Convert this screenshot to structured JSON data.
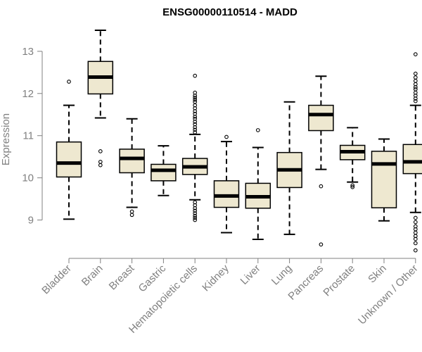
{
  "chart_data": {
    "type": "box",
    "title": "ENSG00000110514 - MADD",
    "ylabel": "Expression",
    "xlabel": "",
    "ylim": [
      8.2,
      13.6
    ],
    "yticks": [
      9,
      10,
      11,
      12,
      13
    ],
    "grid": false,
    "colors": {
      "box_fill": "#EEE8D0",
      "stroke": "#000000",
      "axis": "#808080"
    },
    "categories": [
      "Bladder",
      "Brain",
      "Breast",
      "Gastric",
      "Hematopoietic cells",
      "Kidney",
      "Liver",
      "Lung",
      "Pancreas",
      "Prostate",
      "Skin",
      "Unknown / Other"
    ],
    "boxes": [
      {
        "name": "Bladder",
        "whisker_low": 9.02,
        "q1": 10.02,
        "median": 10.35,
        "q3": 10.85,
        "whisker_high": 11.72,
        "outliers": [
          12.28
        ]
      },
      {
        "name": "Brain",
        "whisker_low": 11.42,
        "q1": 11.99,
        "median": 12.39,
        "q3": 12.76,
        "whisker_high": 13.5,
        "outliers": [
          10.63,
          10.38,
          10.3
        ]
      },
      {
        "name": "Breast",
        "whisker_low": 9.3,
        "q1": 10.12,
        "median": 10.46,
        "q3": 10.68,
        "whisker_high": 11.4,
        "outliers": [
          9.2,
          9.12
        ]
      },
      {
        "name": "Gastric",
        "whisker_low": 9.58,
        "q1": 9.93,
        "median": 10.18,
        "q3": 10.32,
        "whisker_high": 10.76,
        "outliers": []
      },
      {
        "name": "Hematopoietic cells",
        "whisker_low": 9.48,
        "q1": 10.08,
        "median": 10.26,
        "q3": 10.46,
        "whisker_high": 11.03,
        "outliers": [
          12.42,
          12.02,
          11.95,
          11.9,
          11.85,
          11.8,
          11.72,
          11.65,
          11.58,
          11.52,
          11.45,
          11.4,
          11.33,
          11.27,
          11.2,
          11.14,
          11.08,
          9.42,
          9.35,
          9.28,
          9.22,
          9.16,
          9.1,
          9.05,
          9.0
        ]
      },
      {
        "name": "Kidney",
        "whisker_low": 8.7,
        "q1": 9.3,
        "median": 9.57,
        "q3": 9.93,
        "whisker_high": 10.86,
        "outliers": [
          10.97
        ]
      },
      {
        "name": "Liver",
        "whisker_low": 8.54,
        "q1": 9.28,
        "median": 9.55,
        "q3": 9.87,
        "whisker_high": 10.72,
        "outliers": [
          11.13
        ]
      },
      {
        "name": "Lung",
        "whisker_low": 8.66,
        "q1": 9.77,
        "median": 10.19,
        "q3": 10.6,
        "whisker_high": 11.8,
        "outliers": []
      },
      {
        "name": "Pancreas",
        "whisker_low": 10.2,
        "q1": 11.12,
        "median": 11.5,
        "q3": 11.72,
        "whisker_high": 12.41,
        "outliers": [
          9.8,
          8.42
        ]
      },
      {
        "name": "Prostate",
        "whisker_low": 9.9,
        "q1": 10.43,
        "median": 10.62,
        "q3": 10.77,
        "whisker_high": 11.19,
        "outliers": [
          9.82,
          9.78
        ]
      },
      {
        "name": "Skin",
        "whisker_low": 8.98,
        "q1": 9.29,
        "median": 10.33,
        "q3": 10.63,
        "whisker_high": 10.92,
        "outliers": []
      },
      {
        "name": "Unknown / Other",
        "whisker_low": 9.18,
        "q1": 10.1,
        "median": 10.38,
        "q3": 10.79,
        "whisker_high": 11.72,
        "outliers": [
          12.93,
          12.47,
          12.38,
          12.3,
          12.22,
          12.15,
          12.1,
          12.02,
          11.95,
          11.88,
          11.82,
          9.05,
          8.95,
          8.85,
          8.78,
          8.7,
          8.62,
          8.55,
          8.45,
          8.28
        ]
      }
    ]
  }
}
